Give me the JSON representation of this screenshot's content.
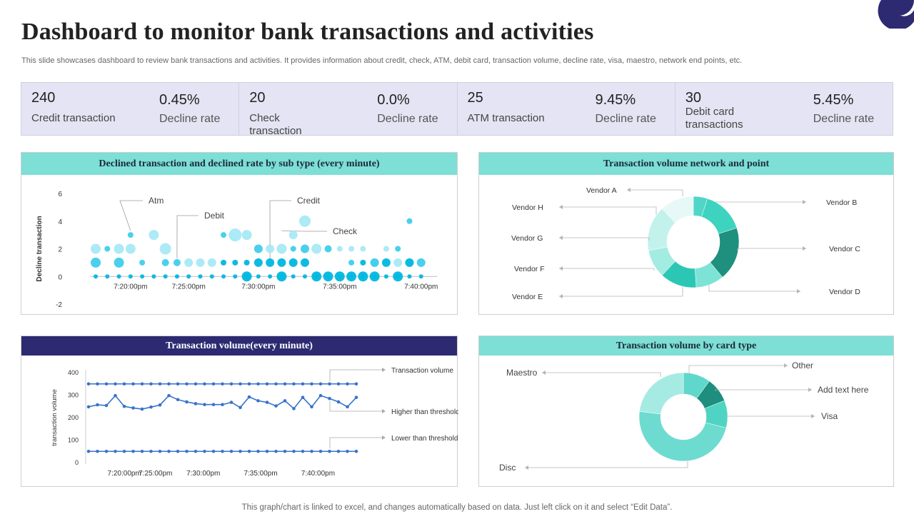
{
  "title": "Dashboard to monitor bank transactions and activities",
  "subtitle": "This slide showcases dashboard to review bank transactions and activities. It provides information about credit, check, ATM,  debit card, transaction volume,  decline rate, visa, maestro, network end points, etc.",
  "kpis": [
    {
      "value": "240",
      "label": "Credit transaction",
      "rate": "0.45%",
      "rate_label": "Decline rate"
    },
    {
      "value": "20",
      "label": "Check transaction",
      "rate": "0.0%",
      "rate_label": "Decline rate"
    },
    {
      "value": "25",
      "label": "ATM transaction",
      "rate": "9.45%",
      "rate_label": "Decline rate"
    },
    {
      "value": "30",
      "label": "Debit card transactions",
      "rate": "5.45%",
      "rate_label": "Decline rate"
    }
  ],
  "footer": "This graph/chart is linked to excel,  and changes automatically based on data. Just left click on it and select “Edit Data”.",
  "colors": {
    "teal_header": "#7ddfd6",
    "navy_header": "#2d2a72",
    "kpi_bg": "#e4e4f4",
    "line_blue": "#3a73c9",
    "bubble_light": "#a8e9f6",
    "bubble_mid": "#40cdeb",
    "bubble_dark": "#00b7e0"
  },
  "chart_data": [
    {
      "type": "scatter",
      "title": "Declined transaction and declined rate by sub type (every minute)",
      "ylabel": "Decline transaction",
      "xlabel": "",
      "ylim": [
        -2,
        6
      ],
      "yticks": [
        -2,
        0,
        2,
        4,
        6
      ],
      "xlim": [
        0,
        29
      ],
      "xticks": [
        {
          "x": 3,
          "label": "7:20:00pm"
        },
        {
          "x": 8,
          "label": "7:25:00pm"
        },
        {
          "x": 14,
          "label": "7:30:00pm"
        },
        {
          "x": 21,
          "label": "7:35:00pm"
        },
        {
          "x": 28,
          "label": "7:40:00pm"
        }
      ],
      "series": [
        {
          "name": "Atm",
          "color": "#a8e9f6",
          "points": [
            [
              0,
              2,
              7
            ],
            [
              2,
              2,
              7
            ],
            [
              3,
              2,
              7
            ],
            [
              5,
              3,
              7
            ],
            [
              6,
              2,
              8
            ],
            [
              8,
              1,
              6
            ],
            [
              9,
              1,
              6
            ],
            [
              10,
              1,
              6
            ],
            [
              12,
              3,
              9
            ],
            [
              13,
              3,
              7
            ],
            [
              15,
              2,
              6
            ],
            [
              16,
              2,
              7
            ],
            [
              17,
              3,
              6
            ],
            [
              18,
              4,
              8
            ],
            [
              19,
              2,
              7
            ],
            [
              21,
              2,
              4
            ],
            [
              22,
              2,
              4
            ],
            [
              23,
              2,
              4
            ],
            [
              24,
              1,
              6
            ],
            [
              25,
              2,
              4
            ],
            [
              26,
              1,
              6
            ],
            [
              27,
              1,
              6
            ]
          ]
        },
        {
          "name": "Debit",
          "color": "#40cdeb",
          "points": [
            [
              0,
              1,
              7
            ],
            [
              1,
              2,
              4
            ],
            [
              2,
              1,
              7
            ],
            [
              3,
              3,
              4
            ],
            [
              4,
              1,
              4
            ],
            [
              6,
              1,
              5
            ],
            [
              7,
              1,
              5
            ],
            [
              11,
              3,
              4
            ],
            [
              14,
              2,
              6
            ],
            [
              17,
              2,
              4
            ],
            [
              18,
              2,
              6
            ],
            [
              20,
              2,
              5
            ],
            [
              22,
              1,
              4
            ],
            [
              24,
              1,
              6
            ],
            [
              26,
              2,
              4
            ],
            [
              27,
              4,
              4
            ],
            [
              28,
              1,
              6
            ]
          ]
        },
        {
          "name": "Credit",
          "color": "#00b7e0",
          "points": [
            [
              0,
              0,
              3
            ],
            [
              1,
              0,
              3
            ],
            [
              2,
              0,
              3
            ],
            [
              3,
              0,
              3
            ],
            [
              4,
              0,
              3
            ],
            [
              5,
              0,
              3
            ],
            [
              6,
              0,
              3
            ],
            [
              7,
              0,
              3
            ],
            [
              8,
              0,
              3
            ],
            [
              9,
              0,
              3
            ],
            [
              10,
              0,
              3
            ],
            [
              11,
              0,
              3
            ],
            [
              12,
              0,
              3
            ],
            [
              13,
              0,
              4
            ],
            [
              14,
              0,
              3
            ],
            [
              15,
              0,
              3
            ],
            [
              16,
              0,
              3
            ],
            [
              17,
              0,
              3
            ],
            [
              18,
              0,
              3
            ],
            [
              19,
              0,
              3
            ],
            [
              20,
              0,
              3
            ],
            [
              21,
              0,
              3
            ],
            [
              22,
              0,
              3
            ],
            [
              23,
              0,
              3
            ],
            [
              24,
              0,
              3
            ],
            [
              25,
              0,
              3
            ],
            [
              26,
              0,
              3
            ],
            [
              27,
              0,
              3
            ],
            [
              28,
              0,
              3
            ],
            [
              11,
              1,
              4
            ],
            [
              12,
              1,
              4
            ],
            [
              13,
              1,
              4
            ],
            [
              14,
              1,
              6
            ],
            [
              15,
              1,
              6
            ],
            [
              16,
              1,
              6
            ],
            [
              17,
              1,
              6
            ],
            [
              18,
              1,
              6
            ],
            [
              23,
              1,
              4
            ],
            [
              25,
              1,
              6
            ],
            [
              27,
              1,
              6
            ]
          ]
        },
        {
          "name": "Check",
          "color": "#00b7e0",
          "points": [
            [
              13,
              0,
              7
            ],
            [
              16,
              0,
              7
            ],
            [
              19,
              0,
              7
            ],
            [
              20,
              0,
              7
            ],
            [
              21,
              0,
              7
            ],
            [
              22,
              0,
              7
            ],
            [
              23,
              0,
              7
            ],
            [
              24,
              0,
              7
            ],
            [
              26,
              0,
              7
            ]
          ]
        }
      ],
      "annotations": [
        {
          "label": "Atm",
          "x": 3,
          "y": 3
        },
        {
          "label": "Debit",
          "x": 7,
          "y": 1
        },
        {
          "label": "Credit",
          "x": 15,
          "y": 1
        },
        {
          "label": "Check",
          "x": 16,
          "y": 3
        }
      ]
    },
    {
      "type": "pie",
      "title": "Transaction volume network and point",
      "labels": [
        "Vendor A",
        "Vendor B",
        "Vendor C",
        "Vendor D",
        "Vendor E",
        "Vendor F",
        "Vendor G",
        "Vendor H"
      ],
      "values": [
        5,
        15,
        19,
        10,
        13,
        10,
        16,
        12
      ],
      "colors": [
        "#4fd6c6",
        "#3ed3bf",
        "#1f8f7e",
        "#7de3d6",
        "#2cc7b4",
        "#a2ece2",
        "#c3f2ec",
        "#e6f9f6"
      ]
    },
    {
      "type": "line",
      "title": "Transaction volume(every minute)",
      "ylabel": "transaction volume",
      "ylim": [
        0,
        400
      ],
      "yticks": [
        0,
        100,
        200,
        300,
        400
      ],
      "xlim": [
        0,
        29
      ],
      "xticks": [
        {
          "x": 3,
          "label": "7:20:00pm"
        },
        {
          "x": 7,
          "label": "7:25:00pm"
        },
        {
          "x": 12,
          "label": "7:30:00pm"
        },
        {
          "x": 18,
          "label": "7:35:00pm"
        },
        {
          "x": 24,
          "label": "7:40:00pm"
        }
      ],
      "series": [
        {
          "name": "Transaction volume",
          "values": [
            248,
            257,
            254,
            298,
            250,
            243,
            238,
            247,
            256,
            298,
            280,
            270,
            262,
            258,
            258,
            258,
            268,
            245,
            292,
            275,
            268,
            252,
            275,
            240,
            290,
            248,
            298,
            285,
            270,
            248,
            290
          ]
        },
        {
          "name": "Higher than threshold",
          "values": [
            350,
            350,
            350,
            350,
            350,
            350,
            350,
            350,
            350,
            350,
            350,
            350,
            350,
            350,
            350,
            350,
            350,
            350,
            350,
            350,
            350,
            350,
            350,
            350,
            350,
            350,
            350,
            350,
            350,
            350,
            350
          ]
        },
        {
          "name": "Lower than threshold",
          "values": [
            50,
            50,
            50,
            50,
            50,
            50,
            50,
            50,
            50,
            50,
            50,
            50,
            50,
            50,
            50,
            50,
            50,
            50,
            50,
            50,
            50,
            50,
            50,
            50,
            50,
            50,
            50,
            50,
            50,
            50,
            50
          ]
        }
      ]
    },
    {
      "type": "pie",
      "title": "Transaction volume by card type",
      "labels": [
        "Other",
        "Add text here",
        "Visa",
        "Disc",
        "Maestro"
      ],
      "values": [
        10,
        9,
        10,
        48,
        23
      ],
      "colors": [
        "#5fd8cb",
        "#1e8e7e",
        "#4fd4c3",
        "#6edbd0",
        "#a6ebe3"
      ]
    }
  ]
}
